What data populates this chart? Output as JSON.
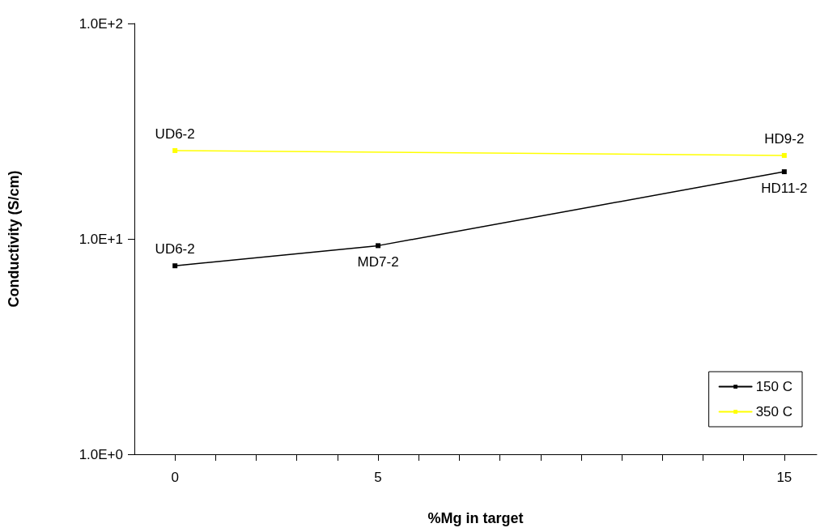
{
  "chart_data": {
    "type": "line",
    "xlabel": "%Mg in target",
    "ylabel": "Conductivity (S/cm)",
    "x": [
      0,
      5,
      15
    ],
    "series": [
      {
        "name": "150 C",
        "color": "#000000",
        "values": [
          7.5,
          9.3,
          20.5
        ]
      },
      {
        "name": "350 C",
        "color": "#ffff00",
        "values": [
          25.7,
          null,
          24.4
        ]
      }
    ],
    "log": "y",
    "xlim": [
      -1,
      15.8
    ],
    "xticks": [
      0,
      {
        "value": 1,
        "label": null
      },
      {
        "value": 2,
        "label": null
      },
      {
        "value": 3,
        "label": null
      },
      {
        "value": 4,
        "label": null
      },
      5,
      {
        "value": 6,
        "label": null
      },
      {
        "value": 7,
        "label": null
      },
      {
        "value": 8,
        "label": null
      },
      {
        "value": 9,
        "label": null
      },
      {
        "value": 10,
        "label": null
      },
      {
        "value": 11,
        "label": null
      },
      {
        "value": 12,
        "label": null
      },
      {
        "value": 13,
        "label": null
      },
      {
        "value": 14,
        "label": null
      },
      15
    ],
    "ylim": [
      1,
      100
    ],
    "yticks": [
      {
        "value": 1,
        "label": "1.0E+0"
      },
      {
        "value": 10,
        "label": "1.0E+1"
      },
      {
        "value": 100,
        "label": "1.0E+2"
      }
    ],
    "annotations": [
      {
        "text": "UD6-2",
        "x": 0,
        "y": 25.7
      },
      {
        "text": "HD9-2",
        "x": 15,
        "y": 24.4
      },
      {
        "text": "UD6-2",
        "x": 0,
        "y": 7.5
      },
      {
        "text": "MD7-2",
        "x": 5,
        "y": 9.3
      },
      {
        "text": "HD11-2",
        "x": 15,
        "y": 20.5
      }
    ],
    "legend": "bottom right",
    "grid": false,
    "marker": "square",
    "line_style": "solid"
  }
}
